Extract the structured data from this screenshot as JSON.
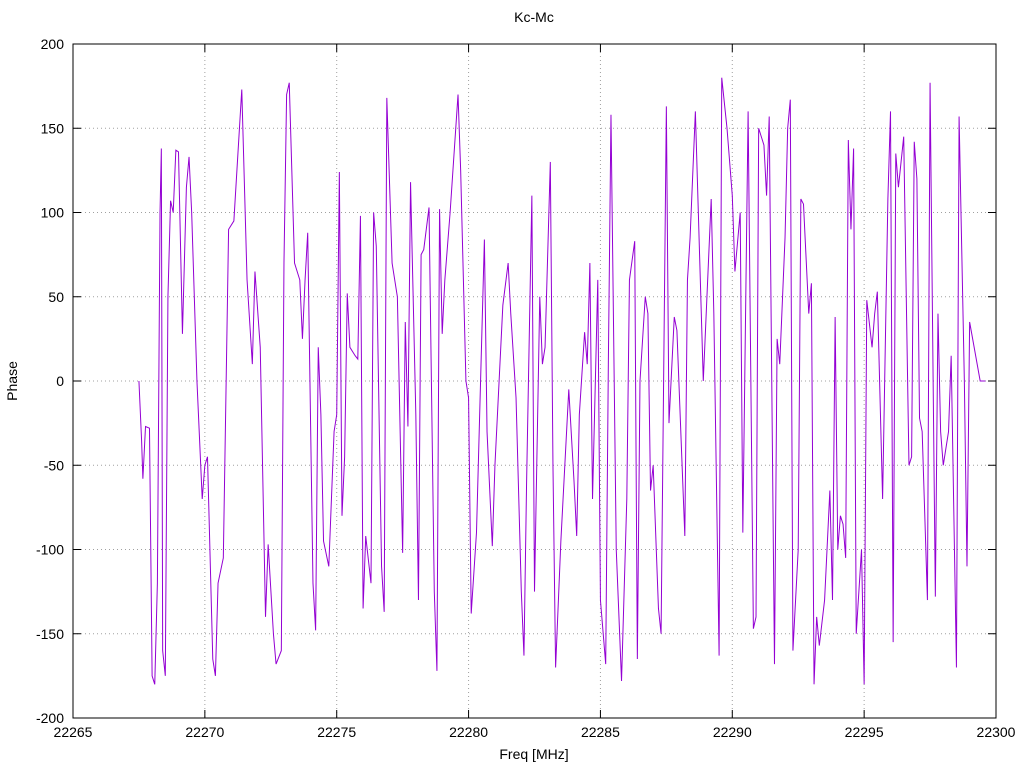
{
  "chart_data": {
    "type": "line",
    "title": "Kc-Mc",
    "x_label": "Freq [MHz]",
    "y_label": "Phase",
    "color": "#9400d3",
    "grid": true,
    "xlim": [
      22265,
      22300
    ],
    "xticks": [
      22265,
      22270,
      22275,
      22280,
      22285,
      22290,
      22295,
      22300
    ],
    "ylim": [
      -200,
      200
    ],
    "yticks": [
      -200,
      -150,
      -100,
      -50,
      0,
      50,
      100,
      150,
      200
    ],
    "x": [
      22267.5,
      22267.6,
      22267.65,
      22267.75,
      22267.9,
      22268.0,
      22268.1,
      22268.2,
      22268.3,
      22268.35,
      22268.4,
      22268.5,
      22268.6,
      22268.7,
      22268.8,
      22268.9,
      22269.0,
      22269.15,
      22269.3,
      22269.4,
      22269.5,
      22269.7,
      22269.9,
      22270.0,
      22270.1,
      22270.3,
      22270.4,
      22270.5,
      22270.7,
      22270.9,
      22271.1,
      22271.4,
      22271.6,
      22271.8,
      22271.9,
      22272.1,
      22272.3,
      22272.4,
      22272.6,
      22272.7,
      22272.9,
      22273.0,
      22273.1,
      22273.2,
      22273.4,
      22273.6,
      22273.7,
      22273.8,
      22273.9,
      22274.1,
      22274.2,
      22274.3,
      22274.4,
      22274.5,
      22274.7,
      22274.9,
      22275.0,
      22275.1,
      22275.2,
      22275.3,
      22275.4,
      22275.5,
      22275.7,
      22275.8,
      22275.9,
      22276.0,
      22276.1,
      22276.3,
      22276.4,
      22276.5,
      22276.7,
      22276.8,
      22276.9,
      22277.1,
      22277.3,
      22277.5,
      22277.6,
      22277.7,
      22277.8,
      22278.0,
      22278.1,
      22278.2,
      22278.3,
      22278.5,
      22278.7,
      22278.8,
      22278.9,
      22279.0,
      22279.1,
      22279.3,
      22279.6,
      22279.7,
      22279.9,
      22280.0,
      22280.1,
      22280.3,
      22280.6,
      22280.7,
      22280.9,
      22281.0,
      22281.3,
      22281.5,
      22281.6,
      22281.8,
      22282.0,
      22282.1,
      22282.2,
      22282.4,
      22282.5,
      22282.7,
      22282.8,
      22282.9,
      22283.1,
      22283.2,
      22283.3,
      22283.5,
      22283.8,
      22284.0,
      22284.1,
      22284.2,
      22284.4,
      22284.5,
      22284.6,
      22284.7,
      22284.9,
      22285.0,
      22285.2,
      22285.3,
      22285.4,
      22285.6,
      22285.8,
      22286.0,
      22286.1,
      22286.3,
      22286.4,
      22286.5,
      22286.7,
      22286.8,
      22286.9,
      22287.0,
      22287.2,
      22287.3,
      22287.5,
      22287.6,
      22287.8,
      22287.9,
      22288.2,
      22288.3,
      22288.4,
      22288.6,
      22288.9,
      22289.2,
      22289.3,
      22289.5,
      22289.6,
      22289.8,
      22290.0,
      22290.1,
      22290.3,
      22290.4,
      22290.6,
      22290.8,
      22290.9,
      22291.0,
      22291.2,
      22291.3,
      22291.4,
      22291.6,
      22291.7,
      22291.8,
      22292.0,
      22292.1,
      22292.2,
      22292.3,
      22292.5,
      22292.6,
      22292.7,
      22292.9,
      22293.0,
      22293.1,
      22293.2,
      22293.3,
      22293.5,
      22293.7,
      22293.8,
      22293.9,
      22294.0,
      22294.1,
      22294.2,
      22294.3,
      22294.4,
      22294.5,
      22294.6,
      22294.7,
      22294.9,
      22295.0,
      22295.1,
      22295.3,
      22295.4,
      22295.5,
      22295.7,
      22295.9,
      22296.0,
      22296.1,
      22296.2,
      22296.3,
      22296.5,
      22296.7,
      22296.8,
      22296.9,
      22297.0,
      22297.1,
      22297.2,
      22297.4,
      22297.5,
      22297.7,
      22297.8,
      22297.9,
      22298.0,
      22298.2,
      22298.3,
      22298.5,
      22298.6,
      22298.8,
      22298.9,
      22299.0,
      22299.4,
      22299.6
    ],
    "values": [
      0,
      -35,
      -58,
      -27,
      -28,
      -175,
      -180,
      -120,
      100,
      138,
      -160,
      -175,
      50,
      107,
      100,
      137,
      136,
      28,
      115,
      133,
      100,
      0,
      -70,
      -50,
      -45,
      -165,
      -175,
      -120,
      -105,
      90,
      95,
      173,
      60,
      10,
      65,
      20,
      -140,
      -97,
      -150,
      -168,
      -160,
      70,
      170,
      177,
      70,
      60,
      25,
      60,
      88,
      -120,
      -148,
      20,
      -20,
      -95,
      -110,
      -30,
      -20,
      124,
      -80,
      -45,
      52,
      20,
      15,
      13,
      98,
      -135,
      -92,
      -120,
      100,
      80,
      -110,
      -137,
      168,
      70,
      50,
      -102,
      35,
      -27,
      118,
      -20,
      -130,
      75,
      78,
      103,
      -125,
      -172,
      102,
      28,
      60,
      100,
      170,
      125,
      0,
      -10,
      -138,
      -90,
      84,
      -30,
      -98,
      -50,
      45,
      70,
      40,
      -10,
      -125,
      -163,
      -60,
      110,
      -125,
      50,
      10,
      20,
      130,
      -50,
      -170,
      -95,
      -5,
      -60,
      -92,
      -20,
      29,
      10,
      70,
      -70,
      60,
      -130,
      -168,
      10,
      158,
      -100,
      -178,
      -70,
      60,
      83,
      -165,
      0,
      50,
      40,
      -65,
      -50,
      -135,
      -150,
      163,
      -25,
      38,
      30,
      -92,
      60,
      85,
      160,
      0,
      108,
      40,
      -163,
      180,
      150,
      110,
      65,
      100,
      -90,
      160,
      -147,
      -140,
      150,
      140,
      110,
      157,
      -168,
      25,
      10,
      85,
      150,
      167,
      -160,
      -100,
      108,
      105,
      40,
      58,
      -180,
      -140,
      -157,
      -130,
      -65,
      -130,
      38,
      -100,
      -80,
      -85,
      -105,
      143,
      90,
      138,
      -150,
      -100,
      -180,
      48,
      20,
      40,
      53,
      -70,
      108,
      160,
      -155,
      135,
      115,
      145,
      -50,
      -45,
      142,
      120,
      -22,
      -30,
      -130,
      177,
      -128,
      40,
      -30,
      -50,
      -30,
      15,
      -170,
      157,
      0,
      -110,
      35,
      0,
      0
    ]
  }
}
